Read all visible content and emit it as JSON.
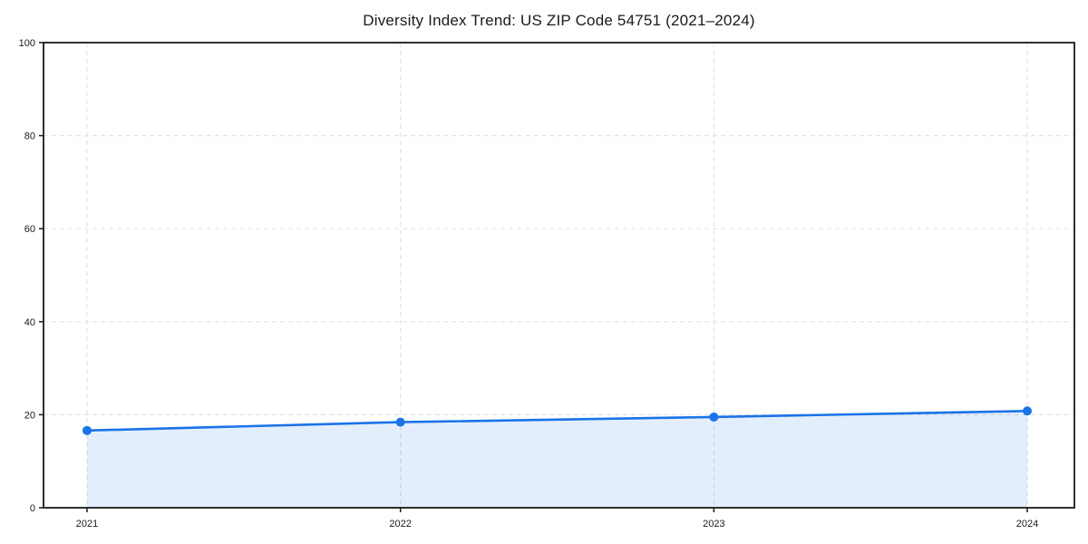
{
  "page": {
    "background": "#ffffff"
  },
  "chart_data": {
    "type": "area",
    "title": "Diversity Index Trend: US ZIP Code 54751 (2021–2024)",
    "x": [
      "2021",
      "2022",
      "2023",
      "2024"
    ],
    "values": [
      16.6,
      18.4,
      19.5,
      20.8
    ],
    "xlabel": "",
    "ylabel": "",
    "ylim": [
      0,
      100
    ],
    "yticks": [
      0,
      20,
      40,
      60,
      80,
      100
    ],
    "grid": "dashed-both-axes",
    "legend": "none",
    "colors": {
      "line": "#1a73e8",
      "marker": "#1a73e8",
      "fill": "rgba(26,115,232,0.12)",
      "grid": "#e3e3e3",
      "spine": "#1a1a1a",
      "text": "#1a1a1a"
    }
  }
}
